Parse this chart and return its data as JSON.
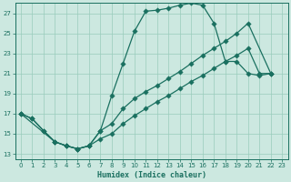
{
  "xlabel": "Humidex (Indice chaleur)",
  "bg_color": "#cce8e0",
  "grid_color": "#99ccbb",
  "line_color": "#1a7060",
  "xlim_min": -0.5,
  "xlim_max": 23.5,
  "ylim_min": 12.5,
  "ylim_max": 28.0,
  "yticks": [
    13,
    15,
    17,
    19,
    21,
    23,
    25,
    27
  ],
  "xticks": [
    0,
    1,
    2,
    3,
    4,
    5,
    6,
    7,
    8,
    9,
    10,
    11,
    12,
    13,
    14,
    15,
    16,
    17,
    18,
    19,
    20,
    21,
    22,
    23
  ],
  "curve1_x": [
    0,
    1,
    2,
    3,
    4,
    5,
    6,
    7,
    8,
    9,
    10,
    11,
    12,
    13,
    14,
    15,
    16,
    17,
    18,
    19,
    20,
    21,
    22
  ],
  "curve1_y": [
    17.0,
    16.5,
    15.3,
    14.2,
    13.8,
    13.5,
    13.8,
    15.3,
    18.8,
    22.0,
    25.2,
    27.2,
    27.3,
    27.5,
    27.8,
    28.0,
    27.8,
    26.0,
    22.2,
    22.2,
    21.0,
    20.8,
    21.0
  ],
  "curve2_x": [
    0,
    3,
    4,
    5,
    6,
    7,
    8,
    9,
    10,
    11,
    12,
    13,
    14,
    15,
    16,
    17,
    18,
    19,
    20,
    22
  ],
  "curve2_y": [
    17.0,
    14.2,
    13.8,
    13.5,
    13.8,
    15.3,
    16.0,
    17.5,
    18.5,
    19.2,
    19.8,
    20.5,
    21.2,
    22.0,
    22.8,
    23.5,
    24.2,
    25.0,
    26.0,
    21.0
  ],
  "curve3_x": [
    0,
    1,
    2,
    3,
    4,
    5,
    6,
    7,
    8,
    9,
    10,
    11,
    12,
    13,
    14,
    15,
    16,
    17,
    18,
    19,
    20,
    21,
    22
  ],
  "curve3_y": [
    17.0,
    16.5,
    15.3,
    14.2,
    13.8,
    13.5,
    13.8,
    14.5,
    15.0,
    16.0,
    16.8,
    17.5,
    18.2,
    18.8,
    19.5,
    20.2,
    20.8,
    21.5,
    22.2,
    22.8,
    23.5,
    21.0,
    21.0
  ]
}
